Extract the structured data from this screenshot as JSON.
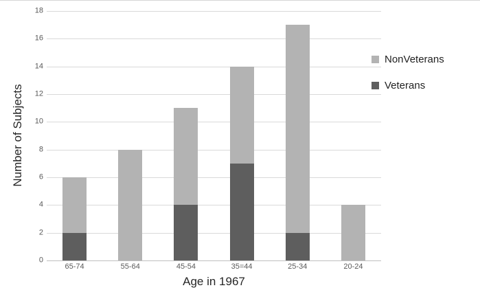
{
  "chart_data": {
    "type": "bar",
    "stacked": true,
    "categories": [
      "65-74",
      "55-64",
      "45-54",
      "35=44",
      "25-34",
      "20-24"
    ],
    "series": [
      {
        "name": "Veterans",
        "color": "#5e5e5e",
        "values": [
          2,
          0,
          4,
          7,
          2,
          0
        ]
      },
      {
        "name": "NonVeterans",
        "color": "#b3b3b3",
        "values": [
          4,
          8,
          7,
          7,
          15,
          4
        ]
      }
    ],
    "xlabel": "Age in 1967",
    "ylabel": "Number of Subjects",
    "ylim": [
      0,
      18
    ],
    "ytick_step": 2,
    "yticks": [
      "0",
      "2",
      "4",
      "6",
      "8",
      "10",
      "12",
      "14",
      "16",
      "18"
    ],
    "grid": true,
    "legend": {
      "position": "right",
      "entries": [
        "NonVeterans",
        "Veterans"
      ]
    }
  },
  "colors": {
    "nonveterans": "#b3b3b3",
    "veterans": "#5e5e5e",
    "gridline": "#d9d9d9",
    "axis_line": "#bfbfbf",
    "tick_text": "#595959",
    "title_text": "#262626"
  }
}
